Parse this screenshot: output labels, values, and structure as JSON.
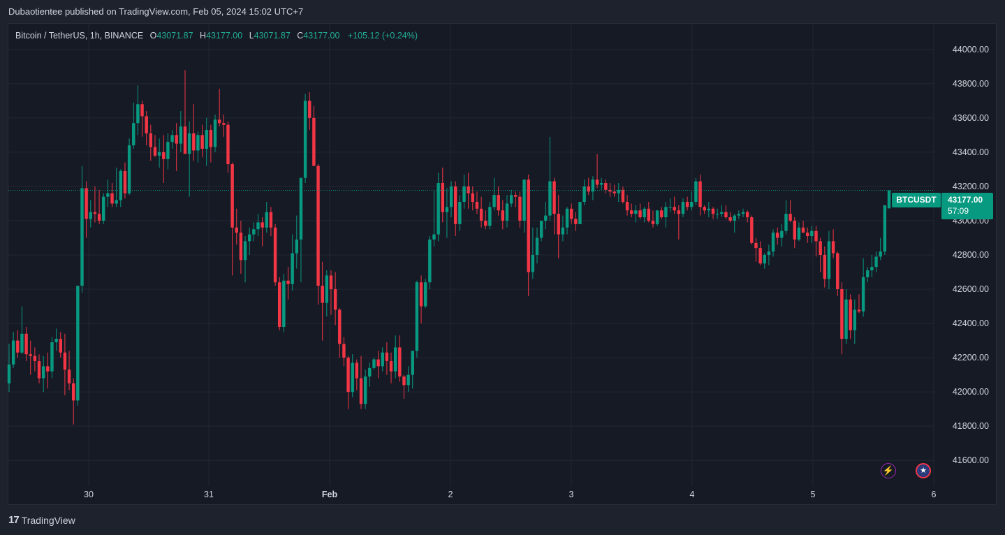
{
  "header": {
    "publish_line": "Dubaotientee published on TradingView.com, Feb 05, 2024 15:02 UTC+7"
  },
  "legend": {
    "symbol": "Bitcoin / TetherUS, 1h, BINANCE",
    "o_label": "O",
    "o_value": "43071.87",
    "h_label": "H",
    "h_value": "43177.00",
    "l_label": "L",
    "l_value": "43071.87",
    "c_label": "C",
    "c_value": "43177.00",
    "change": "+105.12 (+0.24%)"
  },
  "price_tag": {
    "symbol": "BTCUSDT",
    "price": "43177.00",
    "countdown": "57:09"
  },
  "footer": {
    "logo_mark": "17",
    "brand": "TradingView"
  },
  "icons": {
    "lightning": "lightning-icon",
    "flag": "us-flag-icon"
  },
  "colors": {
    "up": "#089981",
    "down": "#f23645",
    "background": "#161a25",
    "grid": "#232733",
    "text": "#d1d4dc"
  },
  "chart_data": {
    "type": "candlestick",
    "symbol": "Bitcoin / TetherUS",
    "interval": "1h",
    "exchange": "BINANCE",
    "ylim": [
      41450,
      44150
    ],
    "y_ticks": [
      41600,
      41800,
      42000,
      42200,
      42400,
      42600,
      42800,
      43000,
      43200,
      43400,
      43600,
      43800,
      44000
    ],
    "y_tick_labels": [
      "41600.00",
      "41800.00",
      "42000.00",
      "42200.00",
      "42400.00",
      "42600.00",
      "42800.00",
      "43000.00",
      "43200.00",
      "43400.00",
      "43600.00",
      "43800.00",
      "44000.00"
    ],
    "x_tick_labels": [
      "30",
      "31",
      "Feb",
      "2",
      "3",
      "4",
      "5",
      "6"
    ],
    "last_price": 43177.0,
    "candles_ohlc": [
      [
        42050,
        42280,
        42000,
        42160
      ],
      [
        42160,
        42350,
        42140,
        42300
      ],
      [
        42300,
        42360,
        42200,
        42230
      ],
      [
        42230,
        42500,
        42220,
        42340
      ],
      [
        42340,
        42380,
        42180,
        42220
      ],
      [
        42220,
        42300,
        42100,
        42210
      ],
      [
        42210,
        42260,
        42120,
        42180
      ],
      [
        42180,
        42220,
        42050,
        42080
      ],
      [
        42080,
        42210,
        42000,
        42150
      ],
      [
        42150,
        42230,
        42020,
        42120
      ],
      [
        42120,
        42320,
        42080,
        42290
      ],
      [
        42290,
        42370,
        42240,
        42310
      ],
      [
        42310,
        42350,
        42200,
        42230
      ],
      [
        42230,
        42340,
        41980,
        42130
      ],
      [
        42130,
        42240,
        42010,
        42050
      ],
      [
        42050,
        42080,
        41810,
        41950
      ],
      [
        41950,
        42620,
        41920,
        42620
      ],
      [
        42620,
        43320,
        42580,
        43190
      ],
      [
        43190,
        43230,
        42900,
        43010
      ],
      [
        43010,
        43120,
        42960,
        43050
      ],
      [
        43050,
        43200,
        42990,
        43040
      ],
      [
        43040,
        43180,
        42980,
        43000
      ],
      [
        43000,
        43160,
        42980,
        43140
      ],
      [
        43140,
        43240,
        43080,
        43160
      ],
      [
        43160,
        43220,
        43080,
        43100
      ],
      [
        43100,
        43310,
        43080,
        43120
      ],
      [
        43120,
        43300,
        43080,
        43290
      ],
      [
        43290,
        43340,
        43130,
        43160
      ],
      [
        43160,
        43480,
        43150,
        43440
      ],
      [
        43440,
        43690,
        43420,
        43570
      ],
      [
        43570,
        43790,
        43500,
        43680
      ],
      [
        43680,
        43700,
        43490,
        43610
      ],
      [
        43610,
        43640,
        43440,
        43510
      ],
      [
        43510,
        43560,
        43350,
        43430
      ],
      [
        43430,
        43500,
        43370,
        43380
      ],
      [
        43380,
        43480,
        43310,
        43400
      ],
      [
        43400,
        43500,
        43220,
        43360
      ],
      [
        43360,
        43510,
        43300,
        43460
      ],
      [
        43460,
        43530,
        43420,
        43500
      ],
      [
        43500,
        43570,
        43290,
        43450
      ],
      [
        43450,
        43640,
        43400,
        43550
      ],
      [
        43550,
        43880,
        43470,
        43390
      ],
      [
        43390,
        43580,
        43140,
        43510
      ],
      [
        43510,
        43680,
        43350,
        43410
      ],
      [
        43410,
        43520,
        43340,
        43500
      ],
      [
        43500,
        43560,
        43370,
        43420
      ],
      [
        43420,
        43600,
        43320,
        43530
      ],
      [
        43530,
        43560,
        43340,
        43430
      ],
      [
        43430,
        43620,
        43400,
        43590
      ],
      [
        43590,
        43770,
        43550,
        43570
      ],
      [
        43570,
        43620,
        43490,
        43560
      ],
      [
        43560,
        43580,
        43280,
        43330
      ],
      [
        43330,
        43340,
        42680,
        42960
      ],
      [
        42960,
        43070,
        42860,
        42930
      ],
      [
        42930,
        43000,
        42690,
        42770
      ],
      [
        42770,
        42910,
        42640,
        42880
      ],
      [
        42880,
        42960,
        42800,
        42920
      ],
      [
        42920,
        42990,
        42880,
        42950
      ],
      [
        42950,
        43040,
        42910,
        42990
      ],
      [
        42990,
        43020,
        42850,
        42960
      ],
      [
        42960,
        43110,
        42930,
        43050
      ],
      [
        43050,
        43080,
        42910,
        42960
      ],
      [
        42960,
        42980,
        42620,
        42640
      ],
      [
        42640,
        42670,
        42360,
        42380
      ],
      [
        42380,
        42690,
        42350,
        42650
      ],
      [
        42650,
        42730,
        42540,
        42630
      ],
      [
        42630,
        42920,
        42590,
        42810
      ],
      [
        42810,
        43030,
        42720,
        42890
      ],
      [
        42890,
        43140,
        42640,
        43250
      ],
      [
        43250,
        43740,
        43220,
        43700
      ],
      [
        43700,
        43750,
        43530,
        43600
      ],
      [
        43600,
        43670,
        43330,
        43320
      ],
      [
        43320,
        43330,
        42510,
        42620
      ],
      [
        42620,
        42760,
        42300,
        42520
      ],
      [
        42520,
        42710,
        42440,
        42680
      ],
      [
        42680,
        42710,
        42450,
        42600
      ],
      [
        42600,
        42700,
        42390,
        42480
      ],
      [
        42480,
        42490,
        42200,
        42280
      ],
      [
        42280,
        42320,
        42150,
        42200
      ],
      [
        42200,
        42210,
        41900,
        42000
      ],
      [
        42000,
        42220,
        41970,
        42170
      ],
      [
        42170,
        42190,
        42010,
        42080
      ],
      [
        42080,
        42210,
        41900,
        41930
      ],
      [
        41930,
        42130,
        41900,
        42090
      ],
      [
        42090,
        42170,
        42030,
        42140
      ],
      [
        42140,
        42200,
        42130,
        42190
      ],
      [
        42190,
        42240,
        42080,
        42150
      ],
      [
        42150,
        42260,
        42120,
        42230
      ],
      [
        42230,
        42290,
        42100,
        42180
      ],
      [
        42180,
        42230,
        42050,
        42120
      ],
      [
        42120,
        42330,
        42080,
        42260
      ],
      [
        42260,
        42330,
        42060,
        42090
      ],
      [
        42090,
        42100,
        41960,
        42040
      ],
      [
        42040,
        42150,
        42000,
        42100
      ],
      [
        42100,
        42200,
        42020,
        42240
      ],
      [
        42240,
        42650,
        42200,
        42640
      ],
      [
        42640,
        42680,
        42400,
        42500
      ],
      [
        42500,
        42660,
        42490,
        42640
      ],
      [
        42640,
        42910,
        42600,
        42890
      ],
      [
        42890,
        43180,
        42850,
        42920
      ],
      [
        42920,
        43280,
        42880,
        43220
      ],
      [
        43220,
        43310,
        42990,
        43050
      ],
      [
        43050,
        43190,
        42900,
        43080
      ],
      [
        43080,
        43230,
        43020,
        43200
      ],
      [
        43200,
        43230,
        42910,
        42980
      ],
      [
        42980,
        43150,
        42940,
        43110
      ],
      [
        43110,
        43270,
        43070,
        43200
      ],
      [
        43200,
        43280,
        43070,
        43160
      ],
      [
        43160,
        43200,
        43060,
        43110
      ],
      [
        43110,
        43170,
        43040,
        43070
      ],
      [
        43070,
        43140,
        42960,
        43000
      ],
      [
        43000,
        43060,
        42950,
        42970
      ],
      [
        42970,
        43110,
        42950,
        43080
      ],
      [
        43080,
        43250,
        43060,
        43150
      ],
      [
        43150,
        43200,
        43030,
        43060
      ],
      [
        43060,
        43120,
        42950,
        43000
      ],
      [
        43000,
        43150,
        42960,
        43100
      ],
      [
        43100,
        43180,
        43080,
        43150
      ],
      [
        43150,
        43170,
        43080,
        43140
      ],
      [
        43140,
        43170,
        42960,
        43000
      ],
      [
        43000,
        43240,
        42930,
        43240
      ],
      [
        43240,
        43270,
        42560,
        42700
      ],
      [
        42700,
        42960,
        42660,
        42800
      ],
      [
        42800,
        42960,
        42750,
        42900
      ],
      [
        42900,
        43000,
        42880,
        43000
      ],
      [
        43000,
        43110,
        42950,
        43030
      ],
      [
        43030,
        43490,
        43000,
        43230
      ],
      [
        43230,
        43250,
        42920,
        43040
      ],
      [
        43040,
        43150,
        42780,
        42920
      ],
      [
        42920,
        43030,
        42880,
        42960
      ],
      [
        42960,
        43080,
        42920,
        43070
      ],
      [
        43070,
        43100,
        42980,
        43010
      ],
      [
        43010,
        43050,
        42940,
        42980
      ],
      [
        42980,
        43100,
        42980,
        43110
      ],
      [
        43110,
        43240,
        43090,
        43200
      ],
      [
        43200,
        43250,
        43150,
        43170
      ],
      [
        43170,
        43260,
        43120,
        43240
      ],
      [
        43240,
        43390,
        43190,
        43210
      ],
      [
        43210,
        43250,
        43180,
        43220
      ],
      [
        43220,
        43240,
        43160,
        43180
      ],
      [
        43180,
        43220,
        43140,
        43170
      ],
      [
        43170,
        43210,
        43140,
        43160
      ],
      [
        43160,
        43220,
        43110,
        43180
      ],
      [
        43180,
        43200,
        43100,
        43110
      ],
      [
        43110,
        43150,
        43030,
        43060
      ],
      [
        43060,
        43100,
        43020,
        43040
      ],
      [
        43040,
        43090,
        42990,
        43060
      ],
      [
        43060,
        43100,
        43010,
        43020
      ],
      [
        43020,
        43080,
        42990,
        43070
      ],
      [
        43070,
        43110,
        42990,
        43000
      ],
      [
        43000,
        43060,
        42960,
        42980
      ],
      [
        42980,
        43060,
        42970,
        43060
      ],
      [
        43060,
        43080,
        43010,
        43020
      ],
      [
        43020,
        43110,
        42960,
        43080
      ],
      [
        43080,
        43130,
        43050,
        43080
      ],
      [
        43080,
        43140,
        43040,
        43060
      ],
      [
        43060,
        43090,
        42890,
        43040
      ],
      [
        43040,
        43130,
        43020,
        43110
      ],
      [
        43110,
        43140,
        43060,
        43080
      ],
      [
        43080,
        43170,
        43060,
        43110
      ],
      [
        43110,
        43250,
        43090,
        43230
      ],
      [
        43230,
        43270,
        43030,
        43080
      ],
      [
        43080,
        43090,
        43040,
        43060
      ],
      [
        43060,
        43110,
        43020,
        43070
      ],
      [
        43070,
        43080,
        43010,
        43040
      ],
      [
        43040,
        43070,
        43010,
        43040
      ],
      [
        43040,
        43090,
        43020,
        43050
      ],
      [
        43050,
        43090,
        43010,
        43020
      ],
      [
        43020,
        43050,
        42990,
        43000
      ],
      [
        43000,
        43040,
        42930,
        43030
      ],
      [
        43030,
        43060,
        43010,
        43040
      ],
      [
        43040,
        43070,
        43020,
        43050
      ],
      [
        43050,
        43060,
        42990,
        43020
      ],
      [
        43020,
        43030,
        42860,
        42870
      ],
      [
        42870,
        42900,
        42760,
        42840
      ],
      [
        42840,
        42880,
        42740,
        42750
      ],
      [
        42750,
        42810,
        42720,
        42800
      ],
      [
        42800,
        42860,
        42740,
        42820
      ],
      [
        42820,
        42950,
        42790,
        42930
      ],
      [
        42930,
        42960,
        42860,
        42900
      ],
      [
        42900,
        42980,
        42850,
        42940
      ],
      [
        42940,
        43120,
        42920,
        43040
      ],
      [
        43040,
        43120,
        42990,
        43000
      ],
      [
        43000,
        43020,
        42840,
        42890
      ],
      [
        42890,
        42990,
        42880,
        42960
      ],
      [
        42960,
        43000,
        42940,
        42930
      ],
      [
        42930,
        42960,
        42870,
        42910
      ],
      [
        42910,
        42970,
        42870,
        42940
      ],
      [
        42940,
        42970,
        42790,
        42880
      ],
      [
        42880,
        42900,
        42700,
        42800
      ],
      [
        42800,
        42850,
        42610,
        42660
      ],
      [
        42660,
        42940,
        42600,
        42880
      ],
      [
        42880,
        42950,
        42780,
        42810
      ],
      [
        42810,
        42820,
        42560,
        42600
      ],
      [
        42600,
        42640,
        42220,
        42310
      ],
      [
        42310,
        42600,
        42280,
        42540
      ],
      [
        42540,
        42570,
        42310,
        42360
      ],
      [
        42360,
        42540,
        42280,
        42480
      ],
      [
        42480,
        42570,
        42460,
        42470
      ],
      [
        42470,
        42780,
        42440,
        42670
      ],
      [
        42670,
        42730,
        42640,
        42710
      ],
      [
        42710,
        42800,
        42670,
        42730
      ],
      [
        42730,
        42820,
        42700,
        42790
      ],
      [
        42790,
        42900,
        42770,
        42820
      ],
      [
        42820,
        43090,
        42800,
        43090
      ],
      [
        43071.87,
        43177,
        43071.87,
        43177
      ]
    ]
  }
}
